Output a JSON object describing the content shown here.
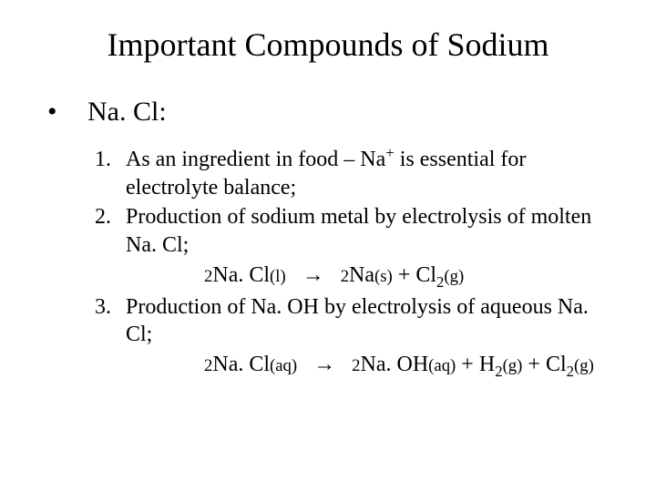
{
  "title": "Important Compounds of Sodium",
  "bullet": {
    "marker": "•",
    "label": "Na. Cl:"
  },
  "items": [
    {
      "num": "1.",
      "pre": "As an ingredient in food – Na",
      "sup": "+",
      "post": " is essential for electrolyte balance;",
      "eq": null
    },
    {
      "num": "2.",
      "pre": "Production of sodium metal by electrolysis of molten Na. Cl;",
      "sup": "",
      "post": "",
      "eq": {
        "lhs_coef": "2",
        "lhs": "Na. Cl",
        "lhs_state": "(l)",
        "arrow": "→",
        "r1_coef": "2",
        "r1": "Na",
        "r1_state": "(s)",
        "plus1": "  +  ",
        "r2": "Cl",
        "r2_sub": "2",
        "r2_state": "(g)"
      }
    },
    {
      "num": "3.",
      "pre": "Production of Na. OH by electrolysis of aqueous Na. Cl;",
      "sup": "",
      "post": "",
      "eq": {
        "lhs_coef": "2",
        "lhs": "Na. Cl",
        "lhs_state": "(aq)",
        "arrow": "→",
        "r1_coef": "2",
        "r1": "Na. OH",
        "r1_state": "(aq)",
        "plus1": " + ",
        "r2": "H",
        "r2_sub": "2",
        "r2_state": "(g)",
        "plus2": " + ",
        "r3": "Cl",
        "r3_sub": "2",
        "r3_state": "(g)"
      }
    }
  ],
  "colors": {
    "text": "#000000",
    "background": "#ffffff"
  },
  "typography": {
    "family": "Times New Roman",
    "title_size_pt": 27,
    "bullet_size_pt": 23,
    "body_size_pt": 18
  }
}
